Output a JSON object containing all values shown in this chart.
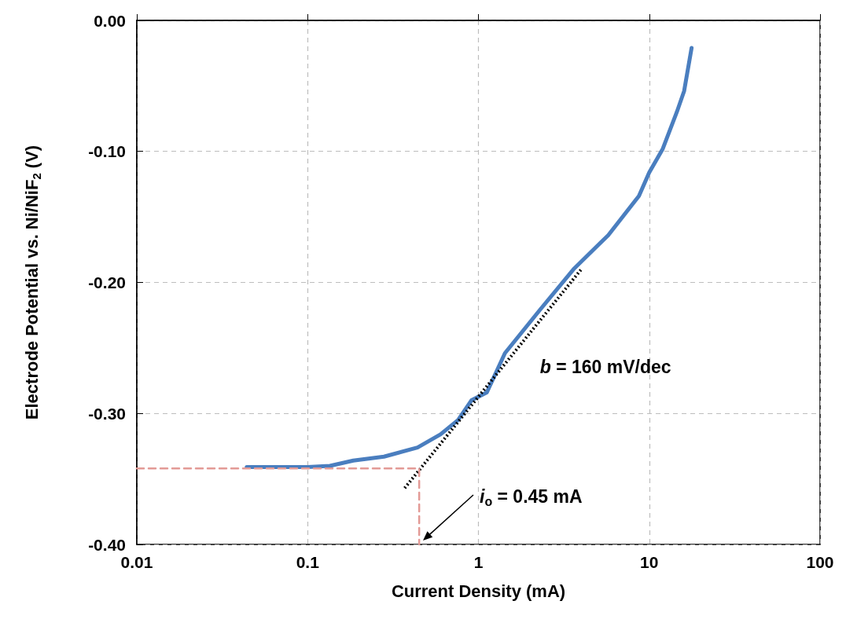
{
  "chart_data": {
    "type": "line",
    "xlabel": "Current Density (mA)",
    "ylabel": "Electrode Potential vs. Ni/NiF$_{2}$ (V)",
    "log": "x",
    "xlim": [
      0.01,
      100
    ],
    "xticks": [
      0.01,
      0.1,
      1,
      10,
      100
    ],
    "ylim": [
      -0.4,
      0
    ],
    "yticks": [
      {
        "value": -0.4,
        "label": "-0.40"
      },
      {
        "value": -0.3,
        "label": "-0.30"
      },
      {
        "value": -0.2,
        "label": "-0.20"
      },
      {
        "value": -0.1,
        "label": "-0.10"
      },
      {
        "value": 0,
        "label": "0.00"
      }
    ],
    "grid": true,
    "marker": "none",
    "series": [
      {
        "color": "#4a7ebf",
        "line_style": "solid",
        "x": [
          0.044,
          0.1,
          0.135,
          0.185,
          0.28,
          0.44,
          0.6,
          0.76,
          0.91,
          1.12,
          1.43,
          2.29,
          3.6,
          5.75,
          8.7,
          10,
          12,
          14.5,
          16,
          17.7
        ],
        "values": [
          -0.341,
          -0.341,
          -0.34,
          -0.336,
          -0.333,
          -0.326,
          -0.316,
          -0.305,
          -0.29,
          -0.284,
          -0.254,
          -0.221,
          -0.19,
          -0.164,
          -0.134,
          -0.116,
          -0.098,
          -0.07,
          -0.054,
          -0.021
        ]
      },
      {
        "type": "line",
        "color": "#000000",
        "line_style": "dotted",
        "x": [
          0.37,
          4.0
        ],
        "values": [
          -0.357,
          -0.19
        ]
      },
      {
        "type": "line",
        "color": "#e39a96",
        "line_style": "dashed",
        "x": [
          0.01,
          0.45,
          0.45
        ],
        "values": [
          -0.342,
          -0.342,
          -0.4
        ]
      }
    ],
    "annotations": [
      {
        "text": "b = 160 mV/dec",
        "x": 1.5,
        "y": -0.263
      },
      "i$_{o}$ = 0.45 mA"
    ]
  }
}
